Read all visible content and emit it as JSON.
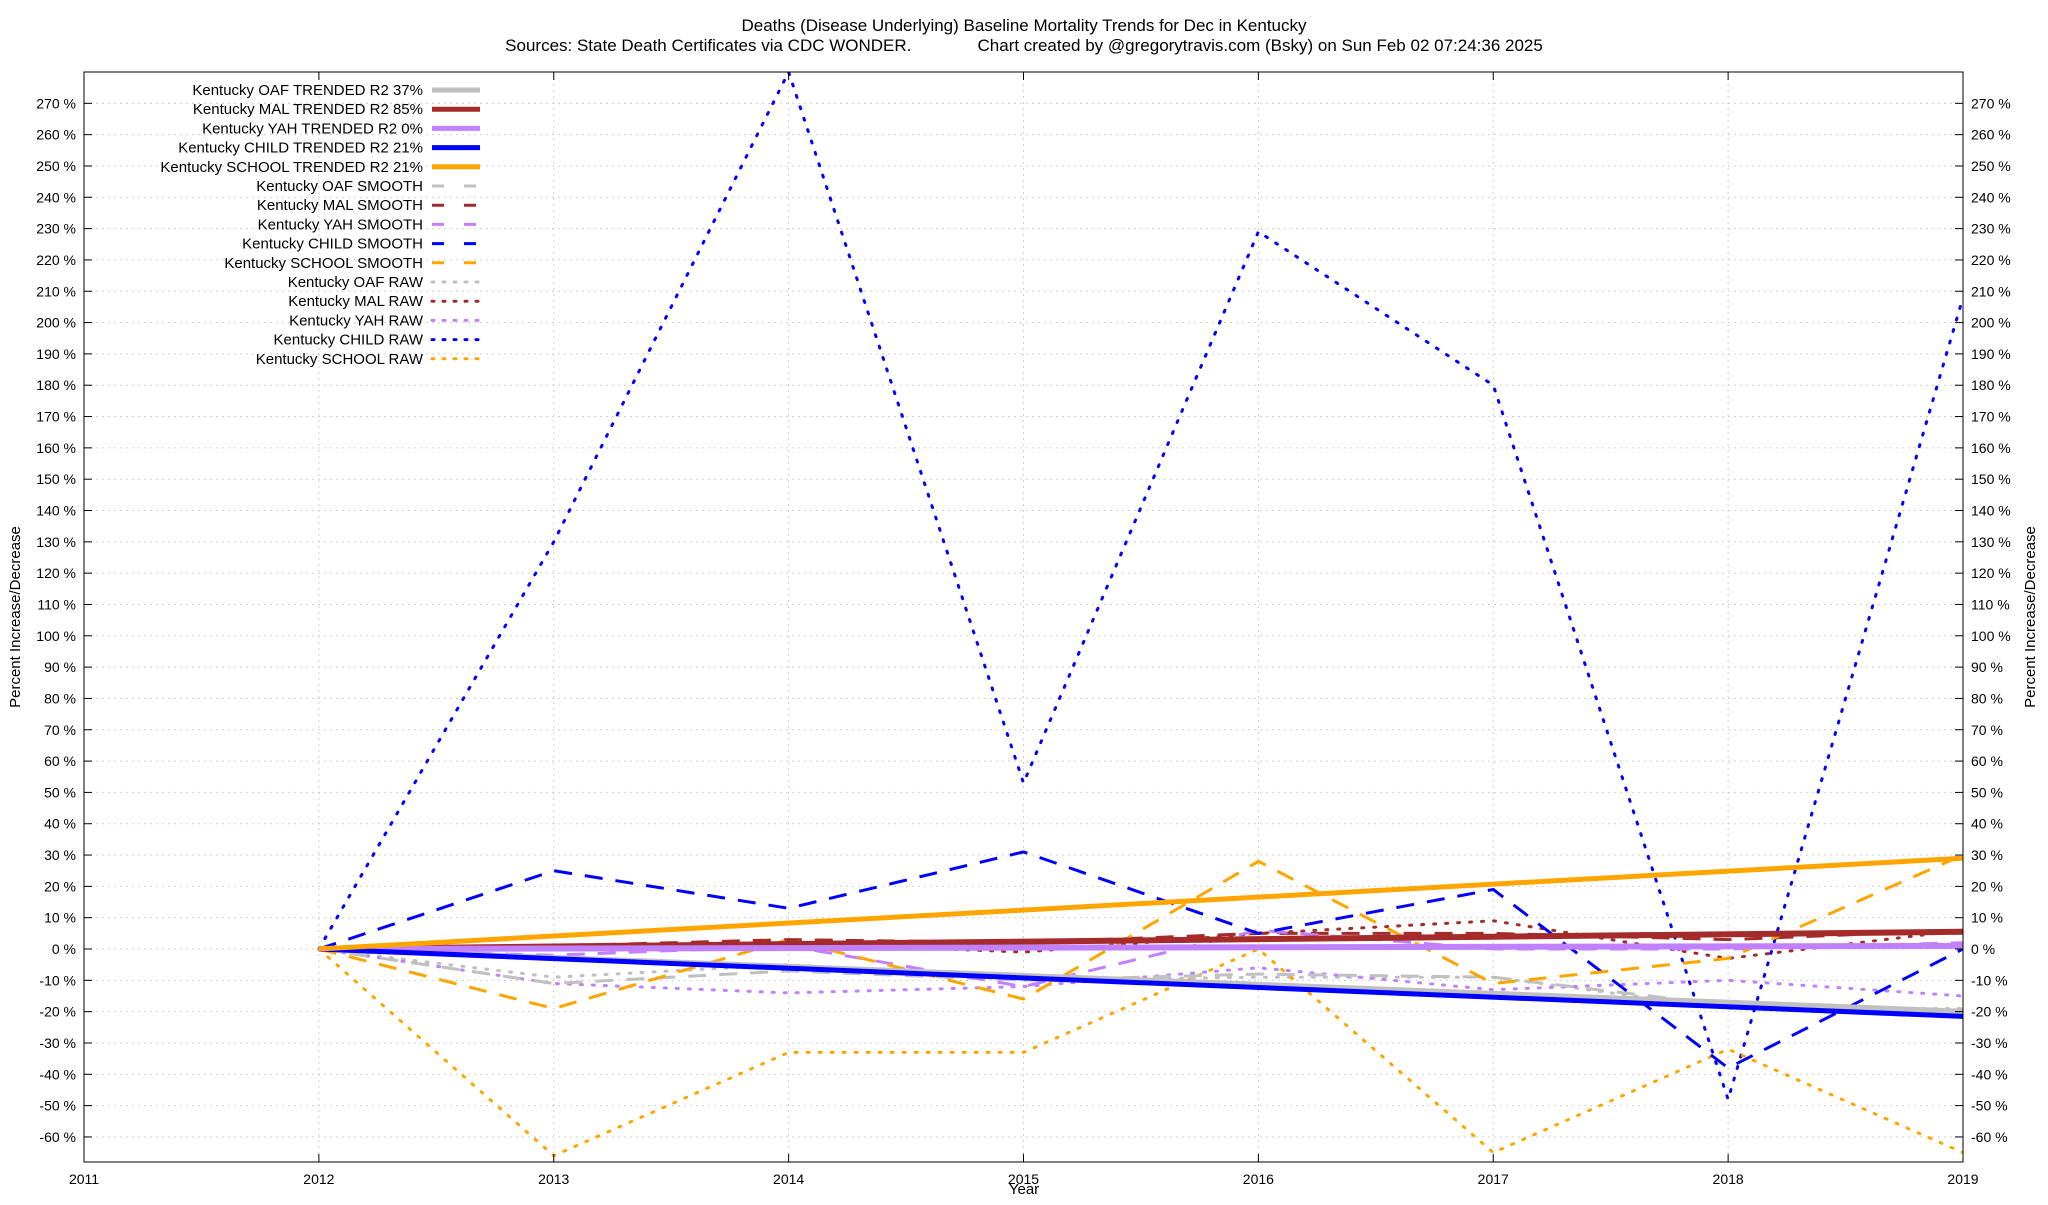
{
  "title_line1": "Deaths (Disease Underlying)  Baseline Mortality Trends for Dec in Kentucky",
  "title_line2": "Sources: State Death Certificates via CDC WONDER.              Chart created by @gregorytravis.com (Bsky) on Sun Feb 02 07:24:36 2025",
  "chart_data": {
    "type": "line",
    "title": "Deaths (Disease Underlying)  Baseline Mortality Trends for Dec in Kentucky",
    "subtitle": "Sources: State Death Certificates via CDC WONDER.              Chart created by @gregorytravis.com (Bsky) on Sun Feb 02 07:24:36 2025",
    "xlabel": "Year",
    "ylabel": "Percent Increase/Decrease",
    "y2label": "Percent Increase/Decrease",
    "xlim": [
      2011,
      2019
    ],
    "ylim": [
      -68,
      280
    ],
    "x_ticks": [
      2011,
      2012,
      2013,
      2014,
      2015,
      2016,
      2017,
      2018,
      2019
    ],
    "y_ticks": [
      -60,
      -50,
      -40,
      -30,
      -20,
      -10,
      0,
      10,
      20,
      30,
      40,
      50,
      60,
      70,
      80,
      90,
      100,
      110,
      120,
      130,
      140,
      150,
      160,
      170,
      180,
      190,
      200,
      210,
      220,
      230,
      240,
      250,
      260,
      270
    ],
    "y_tick_suffix": " %",
    "grid": true,
    "legend_position": "top-left",
    "series": [
      {
        "name": "Kentucky OAF TRENDED R2  37%",
        "color": "#c0c0c0",
        "style": "solid",
        "width": 6,
        "x": [
          2012,
          2019
        ],
        "y": [
          0,
          -20
        ]
      },
      {
        "name": "Kentucky MAL TRENDED R2  85%",
        "color": "#a52a2a",
        "style": "solid",
        "width": 6,
        "x": [
          2012,
          2019
        ],
        "y": [
          0,
          5.5
        ]
      },
      {
        "name": "Kentucky YAH TRENDED R2   0%",
        "color": "#c080ff",
        "style": "solid",
        "width": 6,
        "x": [
          2012,
          2019
        ],
        "y": [
          0,
          1
        ]
      },
      {
        "name": "Kentucky CHILD TRENDED R2  21%",
        "color": "#0000ff",
        "style": "solid",
        "width": 5,
        "x": [
          2012,
          2019
        ],
        "y": [
          0,
          -21.5
        ]
      },
      {
        "name": "Kentucky SCHOOL TRENDED R2  21%",
        "color": "#ffa500",
        "style": "solid",
        "width": 5,
        "x": [
          2012,
          2019
        ],
        "y": [
          0,
          29
        ]
      },
      {
        "name": "Kentucky OAF SMOOTH",
        "color": "#c0c0c0",
        "style": "dashed",
        "width": 3,
        "x": [
          2012,
          2013,
          2014,
          2015,
          2016,
          2017,
          2018,
          2019
        ],
        "y": [
          0,
          -11,
          -7,
          -10,
          -8,
          -9,
          -18,
          -20
        ]
      },
      {
        "name": "Kentucky MAL SMOOTH",
        "color": "#a52a2a",
        "style": "dashed",
        "width": 3,
        "x": [
          2012,
          2013,
          2014,
          2015,
          2016,
          2017,
          2018,
          2019
        ],
        "y": [
          0,
          1,
          3,
          2,
          5,
          5,
          3,
          6
        ]
      },
      {
        "name": "Kentucky YAH SMOOTH",
        "color": "#c080ff",
        "style": "dashed",
        "width": 3,
        "x": [
          2012,
          2013,
          2014,
          2015,
          2016,
          2017,
          2018,
          2019
        ],
        "y": [
          0,
          -2,
          1,
          -12,
          6,
          0,
          0,
          2
        ]
      },
      {
        "name": "Kentucky CHILD SMOOTH",
        "color": "#0000ff",
        "style": "dashed",
        "width": 3,
        "x": [
          2012,
          2013,
          2014,
          2015,
          2016,
          2017,
          2018,
          2019
        ],
        "y": [
          0,
          25,
          13,
          31,
          5,
          19,
          -38,
          0
        ]
      },
      {
        "name": "Kentucky SCHOOL SMOOTH",
        "color": "#ffa500",
        "style": "dashed",
        "width": 3,
        "x": [
          2012,
          2013,
          2014,
          2015,
          2016,
          2017,
          2018,
          2019
        ],
        "y": [
          0,
          -19,
          3,
          -16,
          28,
          -11,
          -3,
          30
        ]
      },
      {
        "name": "Kentucky OAF RAW",
        "color": "#c0c0c0",
        "style": "dotted",
        "width": 3,
        "x": [
          2012,
          2013,
          2014,
          2015,
          2016,
          2017,
          2018,
          2019
        ],
        "y": [
          0,
          -9,
          -5,
          -10,
          -9,
          -9,
          -19,
          -19
        ]
      },
      {
        "name": "Kentucky MAL RAW",
        "color": "#a52a2a",
        "style": "dotted",
        "width": 3,
        "x": [
          2012,
          2013,
          2014,
          2015,
          2016,
          2017,
          2018,
          2019
        ],
        "y": [
          0,
          0,
          2,
          -1,
          5,
          9,
          -3,
          6
        ]
      },
      {
        "name": "Kentucky YAH RAW",
        "color": "#c080ff",
        "style": "dotted",
        "width": 3,
        "x": [
          2012,
          2013,
          2014,
          2015,
          2016,
          2017,
          2018,
          2019
        ],
        "y": [
          0,
          -11,
          -14,
          -12,
          -6,
          -13,
          -10,
          -15
        ]
      },
      {
        "name": "Kentucky CHILD RAW",
        "color": "#0000ff",
        "style": "dotted",
        "width": 3,
        "x": [
          2012,
          2013,
          2014,
          2015,
          2016,
          2017,
          2018,
          2019
        ],
        "y": [
          0,
          130,
          280,
          53,
          229,
          180,
          -48,
          208
        ]
      },
      {
        "name": "Kentucky SCHOOL RAW",
        "color": "#ffa500",
        "style": "dotted",
        "width": 3,
        "x": [
          2012,
          2013,
          2014,
          2015,
          2016,
          2017,
          2018,
          2019
        ],
        "y": [
          0,
          -66,
          -33,
          -33,
          0,
          -65,
          -32,
          -65
        ]
      }
    ]
  }
}
